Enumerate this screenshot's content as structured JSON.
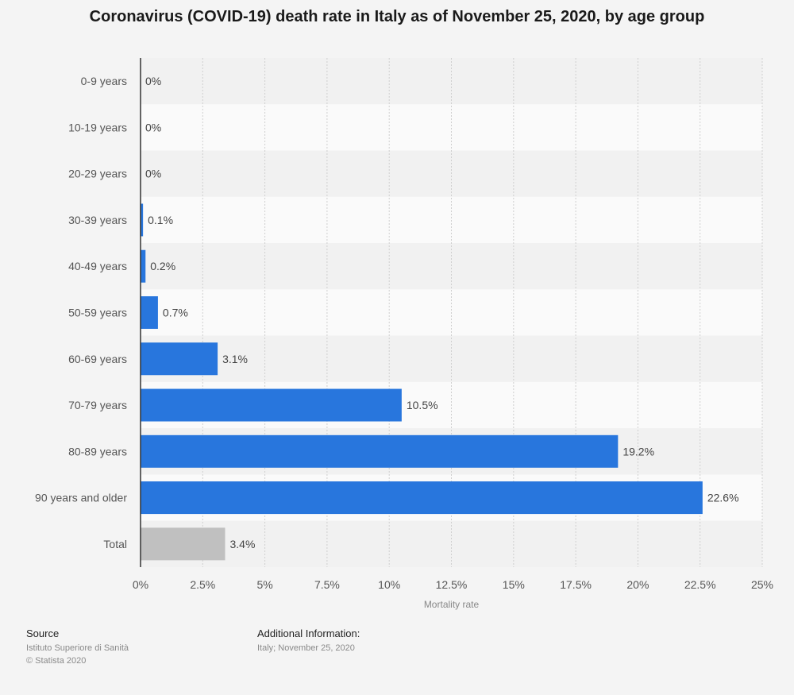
{
  "chart_data": {
    "type": "bar",
    "orientation": "horizontal",
    "title": "Coronavirus (COVID-19) death rate in Italy as of November 25, 2020, by age group",
    "xlabel": "Mortality rate",
    "ylabel": "",
    "categories": [
      "0-9 years",
      "10-19 years",
      "20-29 years",
      "30-39 years",
      "40-49 years",
      "50-59 years",
      "60-69 years",
      "70-79 years",
      "80-89 years",
      "90 years and older",
      "Total"
    ],
    "values": [
      0,
      0,
      0,
      0.1,
      0.2,
      0.7,
      3.1,
      10.5,
      19.2,
      22.6,
      3.4
    ],
    "value_labels": [
      "0%",
      "0%",
      "0%",
      "0.1%",
      "0.2%",
      "0.7%",
      "3.1%",
      "10.5%",
      "19.2%",
      "22.6%",
      "3.4%"
    ],
    "xlim": [
      0,
      25
    ],
    "xticks": [
      0,
      2.5,
      5,
      7.5,
      10,
      12.5,
      15,
      17.5,
      20,
      22.5,
      25
    ],
    "xtick_labels": [
      "0%",
      "2.5%",
      "5%",
      "7.5%",
      "10%",
      "12.5%",
      "15%",
      "17.5%",
      "20%",
      "22.5%",
      "25%"
    ],
    "grid": true,
    "legend": "none",
    "colors": {
      "bar": "#2876dd",
      "total_bar": "#c0c0c0",
      "band_dark": "#f1f1f1",
      "band_light": "#fafafa",
      "grid": "#cfcfcf",
      "axis": "#333333"
    }
  },
  "footer": {
    "source_heading": "Source",
    "source_line1": "Istituto Superiore di Sanità",
    "source_line2": "© Statista 2020",
    "info_heading": "Additional Information:",
    "info_line1": "Italy; November 25, 2020"
  }
}
